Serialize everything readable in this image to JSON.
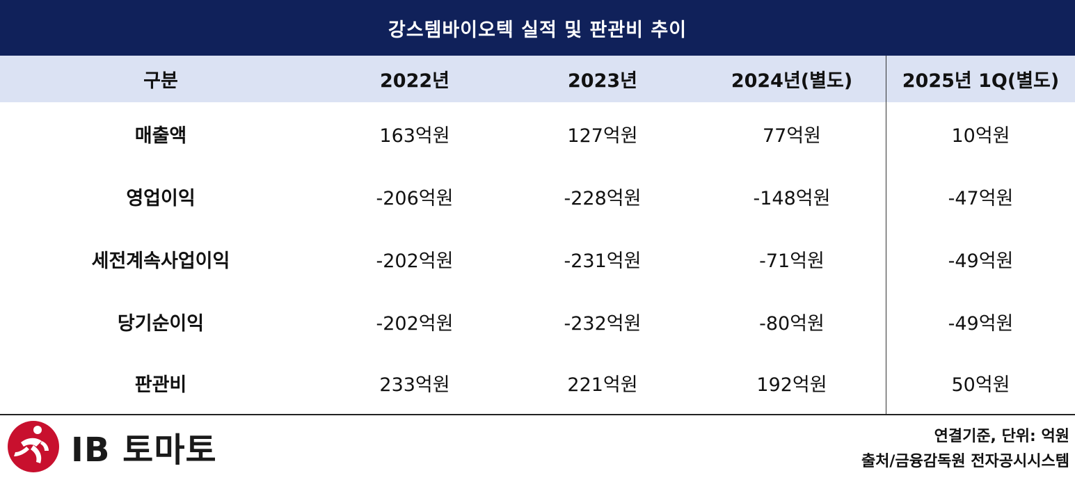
{
  "title": "강스템바이오텍 실적 및 판관비 추이",
  "columns": [
    "구분",
    "2022년",
    "2023년",
    "2024년(별도)",
    "2025년 1Q(별도)"
  ],
  "rows": [
    {
      "label": "매출액",
      "values": [
        "163억원",
        "127억원",
        "77억원",
        "10억원"
      ]
    },
    {
      "label": "영업이익",
      "values": [
        "-206억원",
        "-228억원",
        "-148억원",
        "-47억원"
      ]
    },
    {
      "label": "세전계속사업이익",
      "values": [
        "-202억원",
        "-231억원",
        "-71억원",
        "-49억원"
      ]
    },
    {
      "label": "당기순이익",
      "values": [
        "-202억원",
        "-232억원",
        "-80억원",
        "-49억원"
      ]
    },
    {
      "label": "판관비",
      "values": [
        "233억원",
        "221억원",
        "192억원",
        "50억원"
      ]
    }
  ],
  "footer": {
    "logo_text": "IB 토마토",
    "note_basis": "연결기준, 단위: 억원",
    "note_source": "출처/금융감독원 전자공시시스템"
  },
  "colors": {
    "title_bg": "#10215a",
    "header_bg": "#dbe2f3",
    "logo_red": "#c8102e"
  }
}
